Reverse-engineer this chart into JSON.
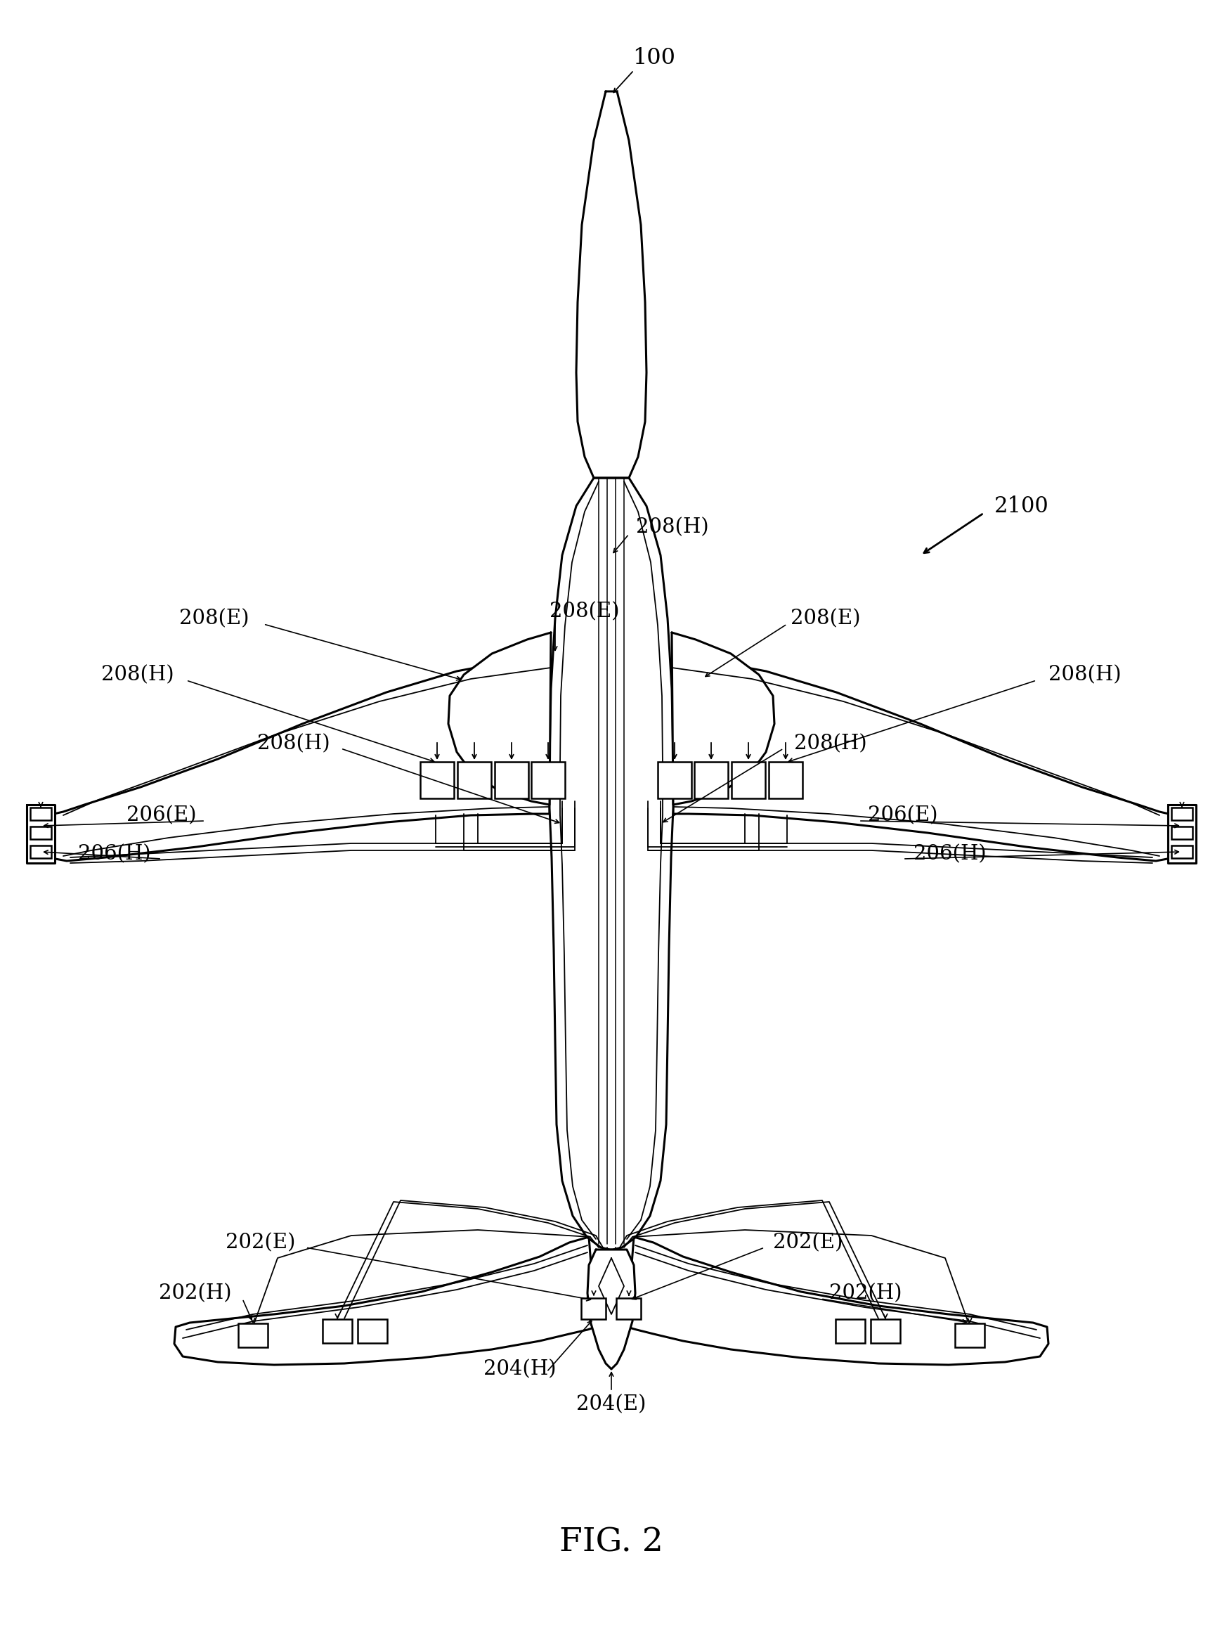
{
  "bg": "#ffffff",
  "lc": "#000000",
  "fig_caption": "FIG. 2",
  "label_100": "100",
  "label_2100": "2100",
  "font_size_main": 22,
  "font_size_label": 20,
  "font_size_caption": 34
}
